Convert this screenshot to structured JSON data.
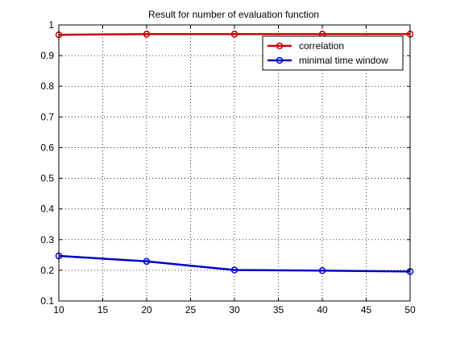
{
  "chart_data": {
    "type": "line",
    "title": "Result for number of evaluation function",
    "xlabel": "",
    "ylabel": "",
    "xlim": [
      10,
      50
    ],
    "ylim": [
      0.1,
      1
    ],
    "xticks": [
      10,
      15,
      20,
      25,
      30,
      35,
      40,
      45,
      50
    ],
    "yticks": [
      0.1,
      0.2,
      0.3,
      0.4,
      0.5,
      0.6,
      0.7,
      0.8,
      0.9,
      1
    ],
    "ytick_labels": [
      "0.1",
      "0.2",
      "0.3",
      "0.4",
      "0.5",
      "0.6",
      "0.7",
      "0.8",
      "0.9",
      "1"
    ],
    "grid": true,
    "legend_position": "top-right",
    "x": [
      10,
      20,
      30,
      40,
      50
    ],
    "series": [
      {
        "name": "correlation",
        "color": "#cc0000",
        "marker": "circle",
        "values": [
          0.968,
          0.97,
          0.97,
          0.97,
          0.97
        ]
      },
      {
        "name": "minimal time window",
        "color": "#0000cc",
        "marker": "circle",
        "values": [
          0.247,
          0.229,
          0.201,
          0.199,
          0.196
        ]
      }
    ]
  }
}
